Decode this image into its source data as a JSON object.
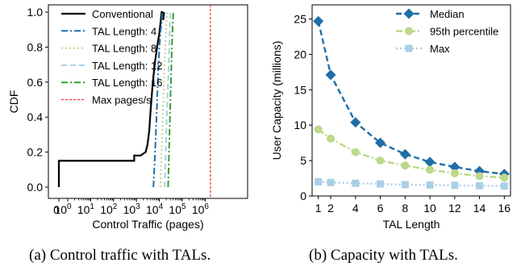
{
  "captions": {
    "left": "(a) Control traffic with TALs.",
    "right": "(b) Capacity with TALs."
  },
  "chart_data": [
    {
      "type": "line",
      "subtype": "cdf",
      "title": "",
      "xlabel": "Control Traffic (pages)",
      "ylabel": "CDF",
      "xscale": "log",
      "x_tick_labels": [
        "0",
        "10^0",
        "10^1",
        "10^2",
        "10^3",
        "10^4",
        "10^5",
        "10^6"
      ],
      "x_tick_values": [
        0,
        1,
        10,
        100,
        1000,
        10000,
        100000,
        1000000
      ],
      "y_tick_labels": [
        "0.0",
        "0.2",
        "0.4",
        "0.6",
        "0.8",
        "1.0"
      ],
      "ylim": [
        0,
        1
      ],
      "grid": false,
      "legend_position": "top-left",
      "series": [
        {
          "name": "Conventional",
          "color": "#000000",
          "dash": "solid",
          "points": [
            [
              0,
              0
            ],
            [
              0,
              0.15
            ],
            [
              800,
              0.15
            ],
            [
              800,
              0.18
            ],
            [
              1500,
              0.18
            ],
            [
              2500,
              0.2
            ],
            [
              3000,
              0.24
            ],
            [
              3600,
              0.32
            ],
            [
              4200,
              0.45
            ],
            [
              5200,
              0.6
            ],
            [
              6500,
              0.72
            ],
            [
              8000,
              0.8
            ],
            [
              10000,
              0.88
            ],
            [
              11500,
              0.95
            ],
            [
              12500,
              1.0
            ],
            [
              13500,
              1.0
            ],
            [
              14000,
              0.96
            ],
            [
              15000,
              0.96
            ],
            [
              16000,
              1.0
            ]
          ]
        },
        {
          "name": "TAL Length: 4",
          "color": "#1f6fa8",
          "dash": "dashdot",
          "points": [
            [
              5500,
              0.0
            ],
            [
              6500,
              0.2
            ],
            [
              7500,
              0.4
            ],
            [
              8500,
              0.6
            ],
            [
              10000,
              0.8
            ],
            [
              11500,
              0.9
            ],
            [
              12500,
              0.94
            ],
            [
              13500,
              1.0
            ]
          ]
        },
        {
          "name": "TAL Length: 8",
          "color": "#bcd88a",
          "dash": "dotted",
          "points": [
            [
              11000,
              0.0
            ],
            [
              12500,
              0.2
            ],
            [
              14000,
              0.4
            ],
            [
              16000,
              0.6
            ],
            [
              18000,
              0.8
            ],
            [
              20000,
              0.92
            ],
            [
              22000,
              1.0
            ]
          ]
        },
        {
          "name": "TAL Length: 12",
          "color": "#a9cfe6",
          "dash": "dashed",
          "points": [
            [
              17000,
              0.0
            ],
            [
              19000,
              0.2
            ],
            [
              21000,
              0.4
            ],
            [
              24000,
              0.6
            ],
            [
              27000,
              0.8
            ],
            [
              29000,
              0.93
            ],
            [
              31000,
              1.0
            ]
          ]
        },
        {
          "name": "TAL Length: 16",
          "color": "#33a02c",
          "dash": "dashdot",
          "points": [
            [
              24000,
              0.0
            ],
            [
              26500,
              0.2
            ],
            [
              29000,
              0.4
            ],
            [
              32000,
              0.6
            ],
            [
              35000,
              0.8
            ],
            [
              38000,
              0.92
            ],
            [
              41000,
              1.0
            ]
          ]
        }
      ],
      "reference_lines": [
        {
          "name": "Max pages/s",
          "x": 1700000,
          "color": "#e8342c",
          "dash": "dashed",
          "orientation": "vertical"
        }
      ]
    },
    {
      "type": "line",
      "title": "",
      "xlabel": "TAL Length",
      "ylabel": "User Capacity (millions)",
      "x_ticks": [
        1,
        2,
        4,
        6,
        8,
        10,
        12,
        14,
        16
      ],
      "y_ticks": [
        0,
        5,
        10,
        15,
        20,
        25
      ],
      "xlim": [
        0.5,
        16.5
      ],
      "ylim": [
        0,
        27
      ],
      "grid": false,
      "legend_position": "top-right",
      "series": [
        {
          "name": "Median",
          "color": "#1f6fa8",
          "dash": "dashed",
          "marker": "diamond",
          "x": [
            1,
            2,
            4,
            6,
            8,
            10,
            12,
            14,
            16
          ],
          "y": [
            24.7,
            17.1,
            10.4,
            7.5,
            5.9,
            4.8,
            4.1,
            3.5,
            3.1
          ]
        },
        {
          "name": "95th percentile",
          "color": "#bcd88a",
          "dash": "dashdot",
          "marker": "circle",
          "x": [
            1,
            2,
            4,
            6,
            8,
            10,
            12,
            14,
            16
          ],
          "y": [
            9.4,
            8.1,
            6.2,
            5.0,
            4.3,
            3.7,
            3.2,
            2.8,
            2.6
          ]
        },
        {
          "name": "Max",
          "color": "#a9cfe6",
          "dash": "dotted",
          "marker": "square",
          "x": [
            1,
            2,
            4,
            6,
            8,
            10,
            12,
            14,
            16
          ],
          "y": [
            2.0,
            1.9,
            1.8,
            1.7,
            1.6,
            1.55,
            1.5,
            1.45,
            1.4
          ]
        }
      ]
    }
  ]
}
